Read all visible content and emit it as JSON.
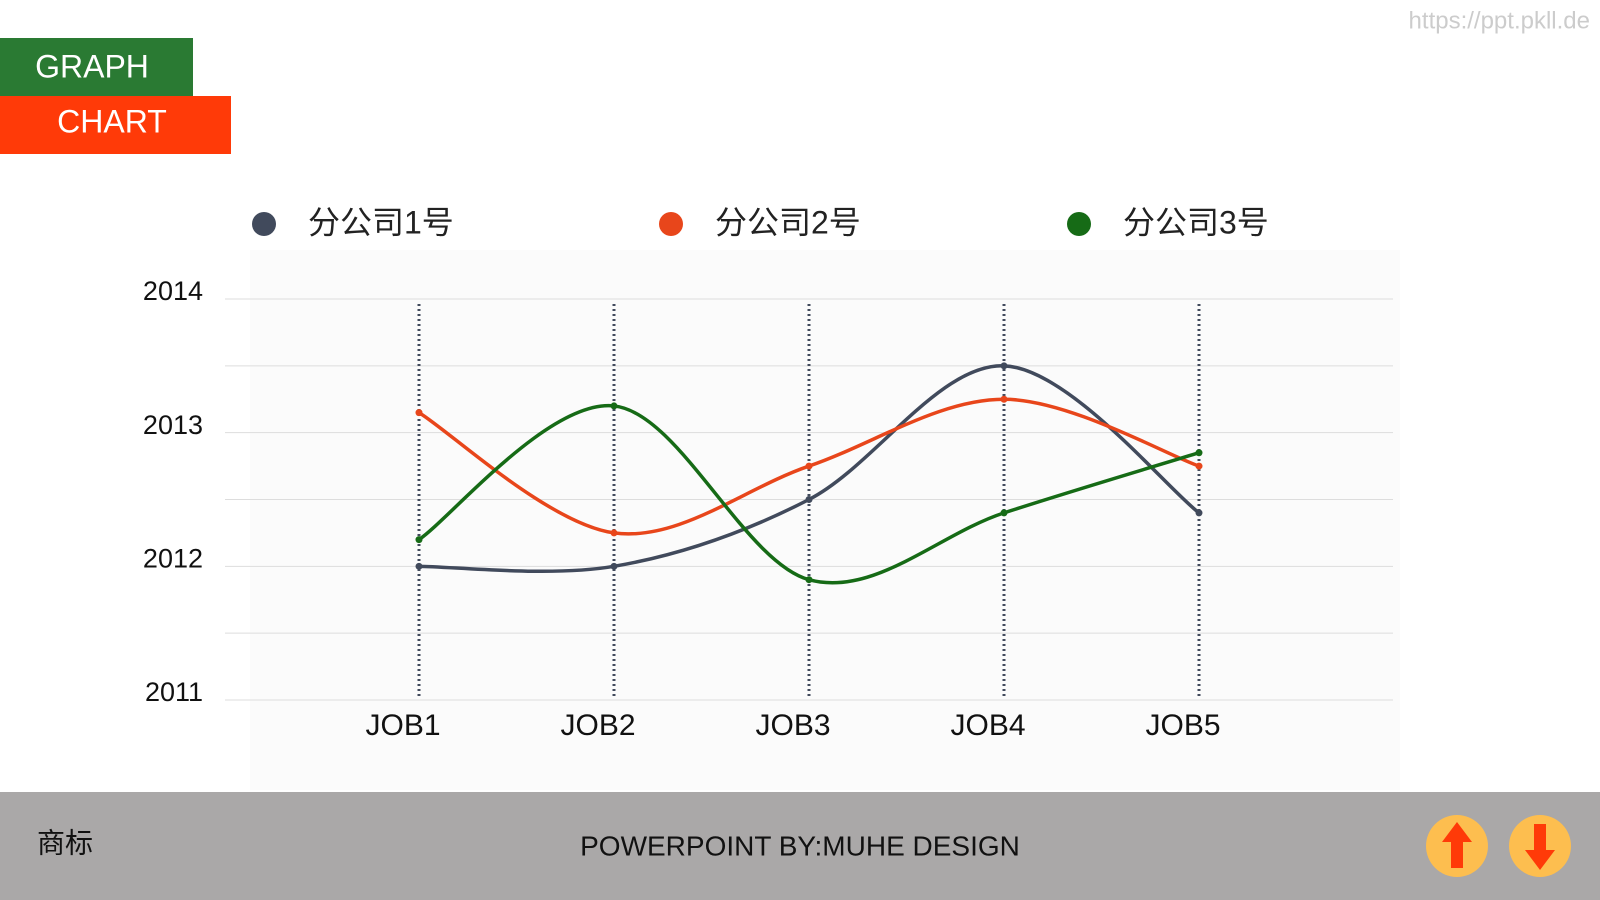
{
  "header": {
    "title_line1": "GRAPH",
    "title_line2": "CHART"
  },
  "watermark": "https://ppt.pkll.de",
  "chart_data": {
    "type": "line",
    "categories": [
      "JOB1",
      "JOB2",
      "JOB3",
      "JOB4",
      "JOB5"
    ],
    "series": [
      {
        "name": "分公司1号",
        "color": "#414a5c",
        "values": [
          2012.0,
          2012.0,
          2012.5,
          2013.5,
          2012.4
        ]
      },
      {
        "name": "分公司2号",
        "color": "#e8461b",
        "values": [
          2013.15,
          2012.25,
          2012.75,
          2013.25,
          2012.75
        ]
      },
      {
        "name": "分公司3号",
        "color": "#166b16",
        "values": [
          2012.2,
          2013.2,
          2011.9,
          2012.4,
          2012.85
        ]
      }
    ],
    "ylim": [
      2011,
      2014
    ],
    "yticks": [
      2011,
      2012,
      2013,
      2014
    ],
    "grid_lines": [
      2011,
      2011.5,
      2012,
      2012.5,
      2013,
      2013.5,
      2014
    ],
    "smooth": true,
    "legend": "top"
  },
  "footer": {
    "logo": "商标",
    "credit": "POWERPOINT BY:MUHE DESIGN"
  }
}
